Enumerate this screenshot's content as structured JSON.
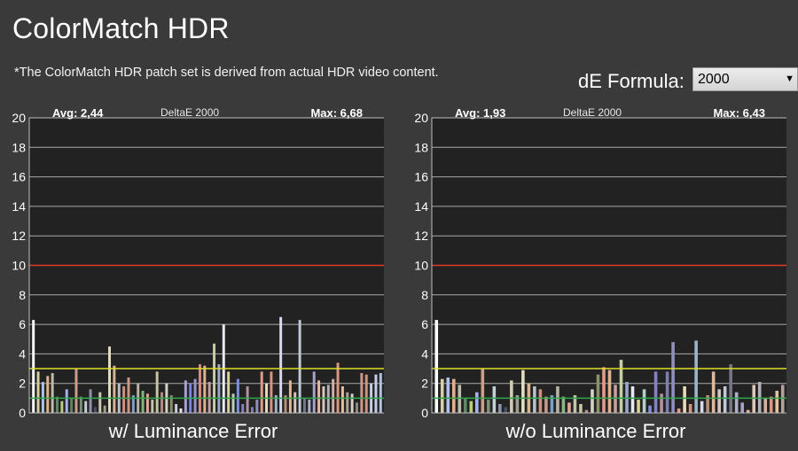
{
  "header": {
    "title": "ColorMatch HDR",
    "note": "*The ColorMatch HDR patch set is derived from actual HDR video content."
  },
  "formula": {
    "label": "dE Formula:",
    "value": "2000"
  },
  "colors": {
    "background": "#3a3a3a",
    "plot_bg": "#222222",
    "grid": "#a9a9a9",
    "ref_line_10": "#e03a2e",
    "ref_line_3": "#dede28",
    "ref_line_1": "#2ea84a"
  },
  "charts": [
    {
      "avg_text": "Avg: 2,44",
      "metric_text": "DeltaE 2000",
      "max_text": "Max: 6,68",
      "caption": "w/ Luminance Error"
    },
    {
      "avg_text": "Avg: 1,93",
      "metric_text": "DeltaE 2000",
      "max_text": "Max: 6,43",
      "caption": "w/o Luminance Error"
    }
  ],
  "chart_data": [
    {
      "type": "bar",
      "title": "DeltaE 2000",
      "caption": "w/ Luminance Error",
      "avg": 2.44,
      "max": 6.68,
      "ylim": [
        0,
        20
      ],
      "yticks": [
        0,
        2,
        4,
        6,
        8,
        10,
        12,
        14,
        16,
        18,
        20
      ],
      "reference_lines": [
        {
          "y": 10,
          "color": "#e03a2e"
        },
        {
          "y": 3,
          "color": "#dede28"
        },
        {
          "y": 1,
          "color": "#2ea84a"
        }
      ],
      "grid": true,
      "bars": [
        {
          "v": 6.3,
          "c": "#ffffff"
        },
        {
          "v": 2.8,
          "c": "#d7d0a4"
        },
        {
          "v": 2.1,
          "c": "#a9c3ee"
        },
        {
          "v": 2.5,
          "c": "#e3b08f"
        },
        {
          "v": 2.7,
          "c": "#bdbdaa"
        },
        {
          "v": 1.1,
          "c": "#5f8a66"
        },
        {
          "v": 0.8,
          "c": "#b8d07c"
        },
        {
          "v": 1.6,
          "c": "#a7b2ee"
        },
        {
          "v": 1.0,
          "c": "#5d8759"
        },
        {
          "v": 3.0,
          "c": "#cc9f89"
        },
        {
          "v": 1.1,
          "c": "#7c8f7a"
        },
        {
          "v": 0.8,
          "c": "#c6cfd6"
        },
        {
          "v": 1.6,
          "c": "#8e93ae"
        },
        {
          "v": 0.4,
          "c": "#46506a"
        },
        {
          "v": 1.4,
          "c": "#d4c9b1"
        },
        {
          "v": 0.5,
          "c": "#9ea08d"
        },
        {
          "v": 4.5,
          "c": "#e3dfc2"
        },
        {
          "v": 3.2,
          "c": "#d6b792"
        },
        {
          "v": 2.0,
          "c": "#b8c1cc"
        },
        {
          "v": 1.8,
          "c": "#d28f7c"
        },
        {
          "v": 2.4,
          "c": "#c89988"
        },
        {
          "v": 1.2,
          "c": "#7ba0c5"
        },
        {
          "v": 2.0,
          "c": "#b8b4a6"
        },
        {
          "v": 1.5,
          "c": "#87b77e"
        },
        {
          "v": 1.3,
          "c": "#e4a993"
        },
        {
          "v": 0.9,
          "c": "#c4c4ae"
        },
        {
          "v": 2.8,
          "c": "#c7c7a8"
        },
        {
          "v": 1.4,
          "c": "#b48a83"
        },
        {
          "v": 2.0,
          "c": "#d4d4c6"
        },
        {
          "v": 1.2,
          "c": "#8e8f6d"
        },
        {
          "v": 0.6,
          "c": "#c9cfdc"
        },
        {
          "v": 0.3,
          "c": "#e8e8e8"
        },
        {
          "v": 2.2,
          "c": "#a6a2d9"
        },
        {
          "v": 2.0,
          "c": "#7b86d8"
        },
        {
          "v": 2.3,
          "c": "#9795d0"
        },
        {
          "v": 3.3,
          "c": "#d98c83"
        },
        {
          "v": 3.2,
          "c": "#e1b28e"
        },
        {
          "v": 2.1,
          "c": "#c5a0a0"
        },
        {
          "v": 4.7,
          "c": "#c5cfa6"
        },
        {
          "v": 3.3,
          "c": "#9aa8ca"
        },
        {
          "v": 6.0,
          "c": "#e9e9f5"
        },
        {
          "v": 2.8,
          "c": "#d8d19a"
        },
        {
          "v": 1.3,
          "c": "#b4d2c7"
        },
        {
          "v": 2.3,
          "c": "#7f8fe0"
        },
        {
          "v": 0.6,
          "c": "#8680c4"
        },
        {
          "v": 1.8,
          "c": "#b691a1"
        },
        {
          "v": 0.4,
          "c": "#7d7db2"
        },
        {
          "v": 0.9,
          "c": "#9090c0"
        },
        {
          "v": 2.8,
          "c": "#e29c89"
        },
        {
          "v": 2.0,
          "c": "#e7dcbd"
        },
        {
          "v": 2.8,
          "c": "#d69485"
        },
        {
          "v": 1.2,
          "c": "#9bb5c9"
        },
        {
          "v": 6.5,
          "c": "#d9d9ed"
        },
        {
          "v": 1.2,
          "c": "#b78f7b"
        },
        {
          "v": 2.2,
          "c": "#e0b89a"
        },
        {
          "v": 1.4,
          "c": "#d8c6c1"
        },
        {
          "v": 6.3,
          "c": "#c1c9d8"
        },
        {
          "v": 1.0,
          "c": "#767687"
        },
        {
          "v": 0.9,
          "c": "#acb0ca"
        },
        {
          "v": 2.8,
          "c": "#a9a3c8"
        },
        {
          "v": 2.2,
          "c": "#e7b5a4"
        },
        {
          "v": 1.8,
          "c": "#dcc7b9"
        },
        {
          "v": 1.9,
          "c": "#b1b1ba"
        },
        {
          "v": 2.3,
          "c": "#d5afa4"
        },
        {
          "v": 3.4,
          "c": "#d99981"
        },
        {
          "v": 1.8,
          "c": "#e3c4a1"
        },
        {
          "v": 1.4,
          "c": "#b1a39c"
        },
        {
          "v": 1.3,
          "c": "#d8d4c5"
        },
        {
          "v": 0.7,
          "c": "#8f8c87"
        },
        {
          "v": 2.7,
          "c": "#d49888"
        },
        {
          "v": 2.6,
          "c": "#cd9784"
        },
        {
          "v": 2.0,
          "c": "#c3cfe2"
        },
        {
          "v": 2.6,
          "c": "#c8cfe9"
        },
        {
          "v": 2.7,
          "c": "#b3c2dc"
        }
      ]
    },
    {
      "type": "bar",
      "title": "DeltaE 2000",
      "caption": "w/o Luminance Error",
      "avg": 1.93,
      "max": 6.43,
      "ylim": [
        0,
        20
      ],
      "yticks": [
        0,
        2,
        4,
        6,
        8,
        10,
        12,
        14,
        16,
        18,
        20
      ],
      "reference_lines": [
        {
          "y": 10,
          "color": "#e03a2e"
        },
        {
          "y": 3,
          "color": "#dede28"
        },
        {
          "y": 1,
          "color": "#2ea84a"
        }
      ],
      "grid": true,
      "bars": [
        {
          "v": 6.3,
          "c": "#ffffff"
        },
        {
          "v": 2.3,
          "c": "#d7d0a4"
        },
        {
          "v": 2.4,
          "c": "#a9c3ee"
        },
        {
          "v": 2.3,
          "c": "#e3b08f"
        },
        {
          "v": 1.9,
          "c": "#bdbdaa"
        },
        {
          "v": 1.0,
          "c": "#5f8a66"
        },
        {
          "v": 0.8,
          "c": "#b8d07c"
        },
        {
          "v": 1.4,
          "c": "#a7b2ee"
        },
        {
          "v": 3.0,
          "c": "#cc9f89"
        },
        {
          "v": 0.9,
          "c": "#7c8f7a"
        },
        {
          "v": 1.8,
          "c": "#c6cfd6"
        },
        {
          "v": 0.6,
          "c": "#8e93ae"
        },
        {
          "v": 0.4,
          "c": "#46506a"
        },
        {
          "v": 2.2,
          "c": "#d4c9b1"
        },
        {
          "v": 1.2,
          "c": "#9ea08d"
        },
        {
          "v": 2.9,
          "c": "#e3dfc2"
        },
        {
          "v": 2.0,
          "c": "#d6b792"
        },
        {
          "v": 1.8,
          "c": "#b8c1cc"
        },
        {
          "v": 1.6,
          "c": "#d28f7c"
        },
        {
          "v": 1.1,
          "c": "#c89988"
        },
        {
          "v": 1.2,
          "c": "#7ba0c5"
        },
        {
          "v": 1.8,
          "c": "#b8b4a6"
        },
        {
          "v": 1.1,
          "c": "#87b77e"
        },
        {
          "v": 0.7,
          "c": "#e4a993"
        },
        {
          "v": 1.2,
          "c": "#c4c4ae"
        },
        {
          "v": 0.6,
          "c": "#c7c7a8"
        },
        {
          "v": 0.2,
          "c": "#b48a83"
        },
        {
          "v": 1.6,
          "c": "#d4d4c6"
        },
        {
          "v": 2.6,
          "c": "#8e8f6d"
        },
        {
          "v": 3.1,
          "c": "#e29c89"
        },
        {
          "v": 2.9,
          "c": "#e1b28e"
        },
        {
          "v": 1.9,
          "c": "#c5a0a0"
        },
        {
          "v": 3.6,
          "c": "#c5cfa6"
        },
        {
          "v": 2.1,
          "c": "#9aa8ca"
        },
        {
          "v": 1.8,
          "c": "#e9e9f5"
        },
        {
          "v": 0.9,
          "c": "#d8d19a"
        },
        {
          "v": 1.6,
          "c": "#b4d2c7"
        },
        {
          "v": 0.5,
          "c": "#7f8fe0"
        },
        {
          "v": 2.8,
          "c": "#8680c4"
        },
        {
          "v": 1.3,
          "c": "#b691a1"
        },
        {
          "v": 2.8,
          "c": "#7d7db2"
        },
        {
          "v": 4.8,
          "c": "#9090c0"
        },
        {
          "v": 0.3,
          "c": "#e29c89"
        },
        {
          "v": 1.8,
          "c": "#e7dcbd"
        },
        {
          "v": 0.6,
          "c": "#d69485"
        },
        {
          "v": 4.9,
          "c": "#9bb5c9"
        },
        {
          "v": 0.8,
          "c": "#d9d9ed"
        },
        {
          "v": 1.2,
          "c": "#b78f7b"
        },
        {
          "v": 2.8,
          "c": "#e0b89a"
        },
        {
          "v": 1.6,
          "c": "#d8c6c1"
        },
        {
          "v": 1.8,
          "c": "#c1c9d8"
        },
        {
          "v": 3.3,
          "c": "#767687"
        },
        {
          "v": 1.4,
          "c": "#acb0ca"
        },
        {
          "v": 0.7,
          "c": "#a9a3c8"
        },
        {
          "v": 0.2,
          "c": "#e7b5a4"
        },
        {
          "v": 1.9,
          "c": "#dcc7b9"
        },
        {
          "v": 2.1,
          "c": "#b1b1ba"
        },
        {
          "v": 1.0,
          "c": "#d5afa4"
        },
        {
          "v": 1.1,
          "c": "#d99981"
        },
        {
          "v": 1.5,
          "c": "#e3c4a1"
        },
        {
          "v": 1.9,
          "c": "#b1a39c"
        }
      ]
    }
  ]
}
